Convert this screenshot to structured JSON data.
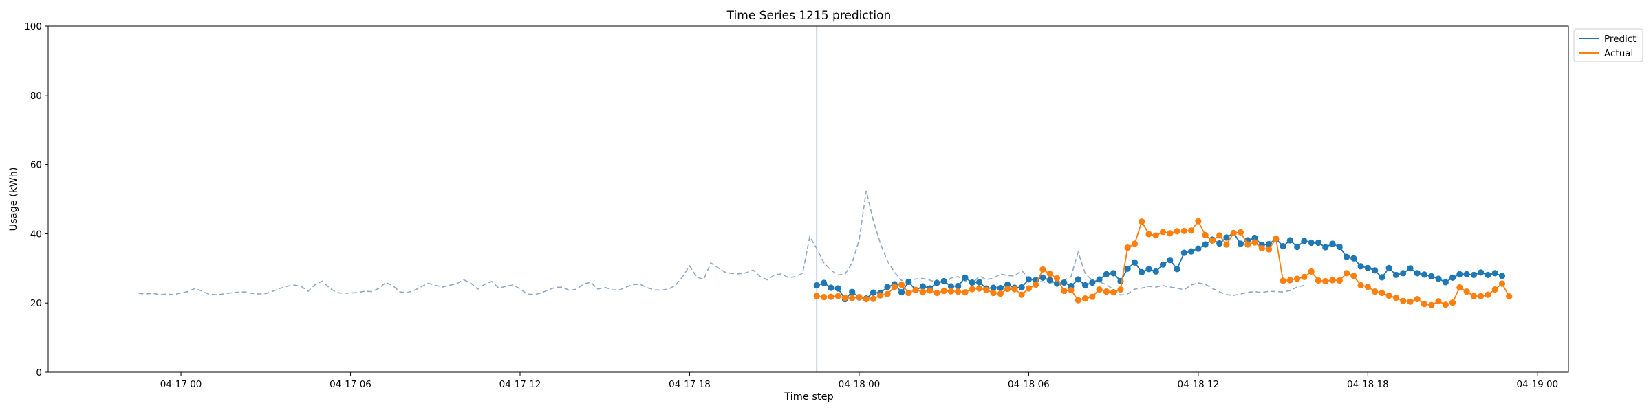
{
  "chart_data": {
    "type": "line",
    "title": "Time Series 1215 prediction",
    "xlabel": "Time step",
    "ylabel": "Usage (kWh)",
    "ylim": [
      0,
      100
    ],
    "xlim": [
      "2024-04-16T19:18",
      "2024-04-19T01:06"
    ],
    "yticks": [
      0,
      20,
      40,
      60,
      80,
      100
    ],
    "xticks": [
      {
        "x": "2024-04-17T00:00",
        "label": "04-17 00"
      },
      {
        "x": "2024-04-17T06:00",
        "label": "04-17 06"
      },
      {
        "x": "2024-04-17T12:00",
        "label": "04-17 12"
      },
      {
        "x": "2024-04-17T18:00",
        "label": "04-17 18"
      },
      {
        "x": "2024-04-18T00:00",
        "label": "04-18 00"
      },
      {
        "x": "2024-04-18T06:00",
        "label": "04-18 06"
      },
      {
        "x": "2024-04-18T12:00",
        "label": "04-18 12"
      },
      {
        "x": "2024-04-18T18:00",
        "label": "04-18 18"
      },
      {
        "x": "2024-04-19T00:00",
        "label": "04-19 00"
      }
    ],
    "grid": false,
    "legend_position": "outside top-right",
    "forecast_start": "2024-04-17T22:30",
    "history": {
      "start": "2024-04-16T22:30",
      "step_minutes": 15,
      "color": "#8fa8c8",
      "style": "dashed",
      "values": [
        22.8,
        22.6,
        22.8,
        22.4,
        22.6,
        22.4,
        22.9,
        23.3,
        24.2,
        23.4,
        22.5,
        22.4,
        22.6,
        22.9,
        23.1,
        23.2,
        22.8,
        22.6,
        22.7,
        23.4,
        24.2,
        24.8,
        25.2,
        24.8,
        23.4,
        25.3,
        26.3,
        24.4,
        23.0,
        22.8,
        22.9,
        23.0,
        23.4,
        23.3,
        24.2,
        25.9,
        25.0,
        23.2,
        23.0,
        23.6,
        24.7,
        25.7,
        25.1,
        24.6,
        25.1,
        25.5,
        26.7,
        25.8,
        24.0,
        25.4,
        26.2,
        24.3,
        24.8,
        25.2,
        24.1,
        22.6,
        22.4,
        22.9,
        23.8,
        24.5,
        24.6,
        23.6,
        24.0,
        25.5,
        26.0,
        24.0,
        24.5,
        23.8,
        23.7,
        24.6,
        25.3,
        25.4,
        24.4,
        23.8,
        23.7,
        24.0,
        25.1,
        27.6,
        30.7,
        27.5,
        26.8,
        31.6,
        30.2,
        28.9,
        28.5,
        28.4,
        28.7,
        29.5,
        27.6,
        26.7,
        28.1,
        28.4,
        27.3,
        27.6,
        28.6,
        39.2,
        35.7,
        31.6,
        29.5,
        28.1,
        28.3,
        31.6,
        38.2,
        52.4,
        43.8,
        37.2,
        32.1,
        28.9,
        26.5,
        26.6,
        26.9,
        27.1,
        26.6,
        25.9,
        25.5,
        27.2,
        27.6,
        26.4,
        25.5,
        27.8,
        26.8,
        27.1,
        28.4,
        27.9,
        27.8,
        29.4,
        27.0,
        26.3,
        26.1,
        25.8,
        26.0,
        26.6,
        27.7,
        34.7,
        28.5,
        26.5,
        26.1,
        25.3,
        23.9,
        22.3,
        22.6,
        24.0,
        24.3,
        24.8,
        24.6,
        25.0,
        24.6,
        24.3,
        23.8,
        25.2,
        25.8,
        25.4,
        24.2,
        23.2,
        22.4,
        22.2,
        22.6,
        23.1,
        23.3,
        23.0,
        23.4,
        23.3,
        23.2,
        23.6,
        24.6,
        25.1
      ]
    },
    "series": [
      {
        "name": "Predict",
        "color": "#1f77b4",
        "marker": "circle",
        "start": "2024-04-17T22:30",
        "step_minutes": 15,
        "values": [
          25.1,
          25.8,
          24.4,
          24.2,
          21.1,
          23.2,
          21.6,
          21.3,
          23.0,
          22.9,
          24.6,
          25.4,
          23.1,
          26.1,
          23.7,
          24.8,
          24.2,
          25.8,
          26.3,
          24.8,
          24.9,
          27.3,
          25.9,
          26.0,
          24.2,
          24.4,
          24.3,
          25.3,
          24.4,
          24.5,
          26.8,
          26.6,
          27.3,
          26.6,
          25.6,
          25.9,
          24.9,
          26.8,
          25.1,
          25.9,
          26.8,
          28.3,
          28.6,
          26.3,
          29.9,
          31.7,
          28.9,
          29.8,
          29.1,
          31.1,
          32.4,
          29.8,
          34.5,
          34.9,
          35.7,
          36.9,
          38.3,
          37.2,
          38.9,
          40.2,
          37.1,
          38.1,
          38.8,
          36.8,
          37.0,
          38.5,
          36.4,
          38.1,
          36.2,
          37.9,
          37.4,
          37.4,
          36.1,
          37.1,
          36.2,
          33.3,
          32.9,
          30.6,
          30.1,
          29.4,
          27.4,
          30.1,
          28.1,
          28.6,
          30.0,
          28.6,
          28.2,
          27.7,
          27.0,
          26.0,
          27.3,
          28.3,
          28.3,
          28.1,
          28.8,
          28.1,
          28.6,
          27.8
        ]
      },
      {
        "name": "Actual",
        "color": "#ff7f0e",
        "marker": "circle",
        "start": "2024-04-17T22:30",
        "step_minutes": 15,
        "values": [
          22.0,
          21.7,
          21.8,
          22.0,
          21.5,
          21.4,
          21.7,
          21.1,
          21.2,
          22.2,
          22.6,
          24.6,
          25.3,
          22.9,
          23.8,
          23.2,
          23.6,
          22.9,
          23.5,
          23.4,
          23.3,
          23.1,
          24.0,
          24.2,
          23.8,
          22.9,
          22.7,
          24.1,
          24.0,
          22.4,
          24.2,
          25.3,
          29.7,
          28.4,
          27.1,
          23.5,
          23.7,
          20.8,
          21.3,
          21.8,
          23.9,
          23.3,
          23.1,
          23.9,
          36.0,
          37.1,
          43.5,
          39.9,
          39.5,
          40.5,
          40.1,
          40.7,
          40.8,
          40.9,
          43.6,
          39.6,
          38.0,
          39.5,
          36.9,
          40.2,
          40.4,
          36.9,
          37.5,
          35.8,
          35.5,
          38.6,
          26.4,
          26.6,
          27.0,
          27.5,
          29.1,
          26.5,
          26.3,
          26.6,
          26.5,
          28.6,
          27.8,
          25.1,
          24.7,
          23.3,
          22.9,
          22.1,
          21.5,
          20.6,
          20.4,
          21.1,
          19.7,
          19.4,
          20.5,
          19.5,
          20.1,
          24.5,
          23.3,
          22.0,
          22.0,
          22.4,
          23.9,
          25.6,
          21.9
        ]
      }
    ]
  }
}
